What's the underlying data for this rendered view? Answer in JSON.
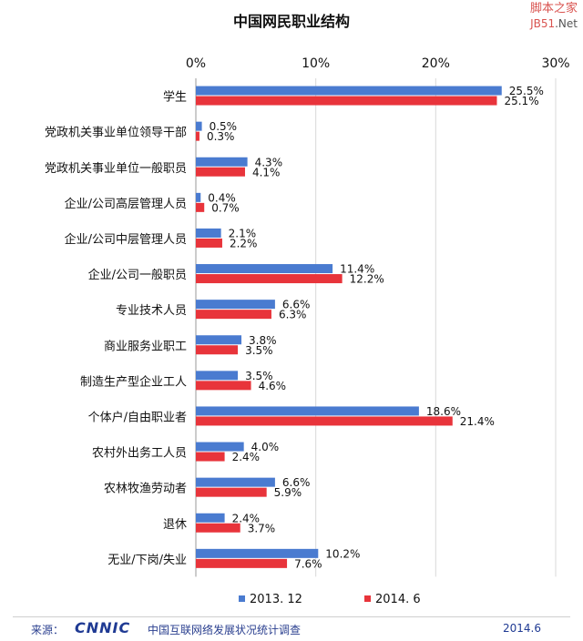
{
  "title": "中国网民职业结构",
  "site_logo": {
    "line1": "脚本之家",
    "line2a": "JB51",
    "line2b": ".Net"
  },
  "footer": {
    "source_label": "来源：",
    "brand": "CNNIC",
    "org": "中国互联网络发展状况统计调查",
    "date": "2014.6"
  },
  "colors": {
    "series1": "#4a7bd0",
    "series2": "#e8343b",
    "grid": "#d9d9d9",
    "axis": "#999999",
    "text": "#111111"
  },
  "chart_data": {
    "type": "bar",
    "orientation": "horizontal",
    "title": "中国网民职业结构",
    "xlim": [
      0,
      30
    ],
    "xticks": [
      "0%",
      "10%",
      "20%",
      "30%"
    ],
    "xtick_values": [
      0,
      10,
      20,
      30
    ],
    "grid": true,
    "legend_position": "bottom",
    "categories": [
      "学生",
      "党政机关事业单位领导干部",
      "党政机关事业单位一般职员",
      "企业/公司高层管理人员",
      "企业/公司中层管理人员",
      "企业/公司一般职员",
      "专业技术人员",
      "商业服务业职工",
      "制造生产型企业工人",
      "个体户/自由职业者",
      "农村外出务工人员",
      "农林牧渔劳动者",
      "退休",
      "无业/下岗/失业"
    ],
    "series": [
      {
        "name": "2013. 12",
        "values": [
          25.5,
          0.5,
          4.3,
          0.4,
          2.1,
          11.4,
          6.6,
          3.8,
          3.5,
          18.6,
          4.0,
          6.6,
          2.4,
          10.2
        ],
        "labels": [
          "25.5%",
          "0.5%",
          "4.3%",
          "0.4%",
          "2.1%",
          "11.4%",
          "6.6%",
          "3.8%",
          "3.5%",
          "18.6%",
          "4.0%",
          "6.6%",
          "2.4%",
          "10.2%"
        ]
      },
      {
        "name": "2014. 6",
        "values": [
          25.1,
          0.3,
          4.1,
          0.7,
          2.2,
          12.2,
          6.3,
          3.5,
          4.6,
          21.4,
          2.4,
          5.9,
          3.7,
          7.6
        ],
        "labels": [
          "25.1%",
          "0.3%",
          "4.1%",
          "0.7%",
          "2.2%",
          "12.2%",
          "6.3%",
          "3.5%",
          "4.6%",
          "21.4%",
          "2.4%",
          "5.9%",
          "3.7%",
          "7.6%"
        ]
      }
    ]
  }
}
